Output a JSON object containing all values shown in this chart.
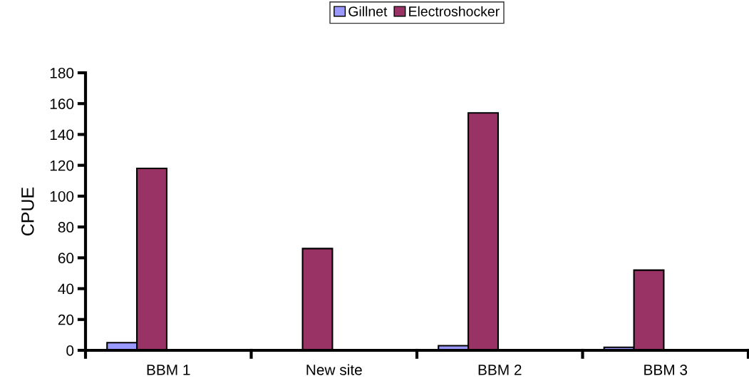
{
  "chart_data": {
    "type": "bar",
    "ylabel": "CPUE",
    "categories": [
      "BBM 1",
      "New site",
      "BBM 2",
      "BBM 3"
    ],
    "series": [
      {
        "name": "Gillnet",
        "color": "#9999ff",
        "values": [
          5,
          0,
          3,
          2
        ]
      },
      {
        "name": "Electroshocker",
        "color": "#993366",
        "values": [
          118,
          66,
          154,
          52
        ]
      }
    ],
    "ylim": [
      0,
      180
    ],
    "yticks": [
      0,
      20,
      40,
      60,
      80,
      100,
      120,
      140,
      160,
      180
    ],
    "grid": false,
    "legend": "top"
  }
}
